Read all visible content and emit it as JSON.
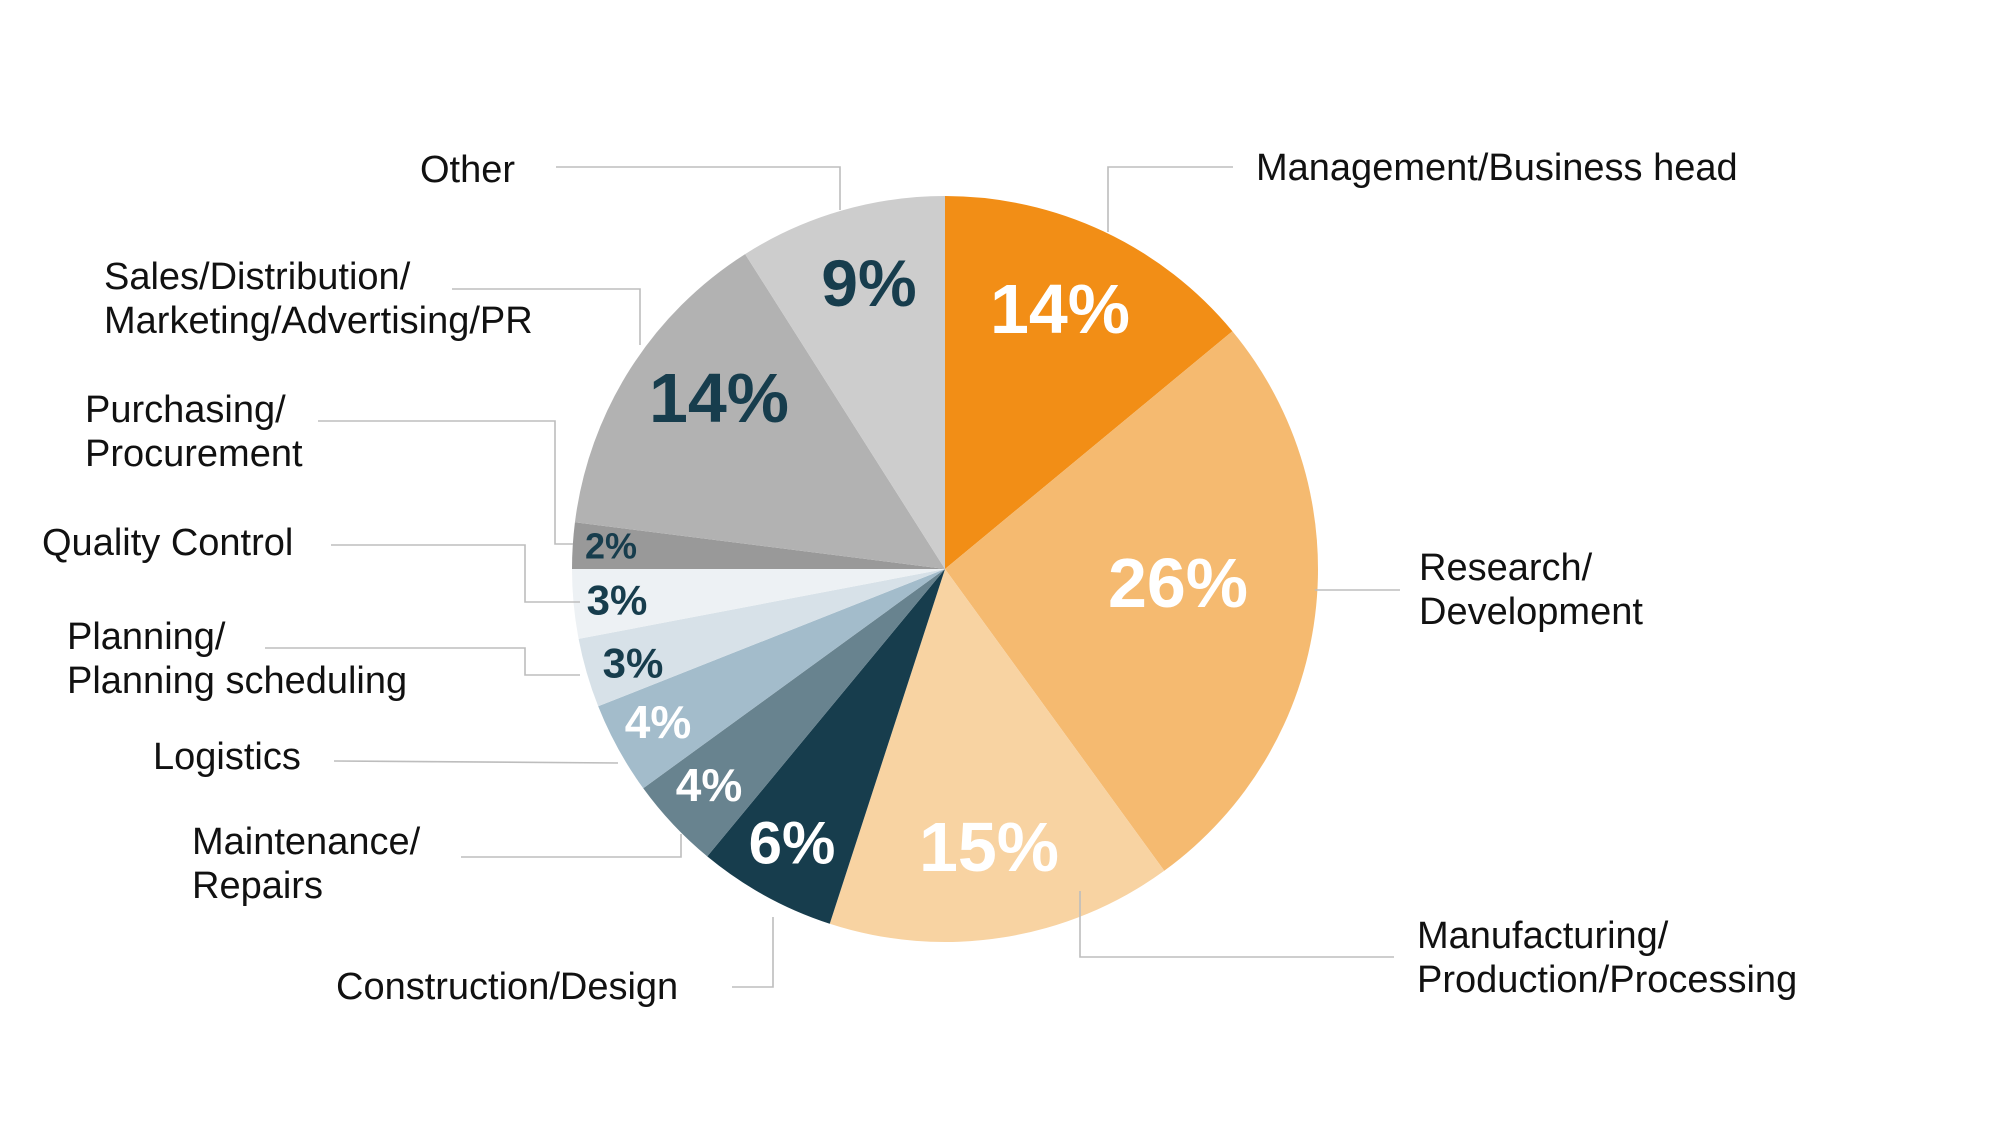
{
  "chart_data": {
    "type": "pie",
    "title": "",
    "start_angle_deg": 0,
    "direction": "clockwise",
    "slices": [
      {
        "label": "Management/Business head",
        "label_lines": [
          "Management/Business head"
        ],
        "value": 14,
        "value_label": "14%",
        "color": "#F28E16",
        "text_color": "#FFFFFF"
      },
      {
        "label": "Research/Development",
        "label_lines": [
          "Research/",
          "Development"
        ],
        "value": 26,
        "value_label": "26%",
        "color": "#F5BA70",
        "text_color": "#FFFFFF"
      },
      {
        "label": "Manufacturing/Production/Processing",
        "label_lines": [
          "Manufacturing/",
          "Production/Processing"
        ],
        "value": 15,
        "value_label": "15%",
        "color": "#F8D3A2",
        "text_color": "#FFFFFF"
      },
      {
        "label": "Construction/Design",
        "label_lines": [
          "Construction/Design"
        ],
        "value": 6,
        "value_label": "6%",
        "color": "#173D4D",
        "text_color": "#FFFFFF"
      },
      {
        "label": "Maintenance/Repairs",
        "label_lines": [
          "Maintenance/",
          "Repairs"
        ],
        "value": 4,
        "value_label": "4%",
        "color": "#68838F",
        "text_color": "#FFFFFF"
      },
      {
        "label": "Logistics",
        "label_lines": [
          "Logistics"
        ],
        "value": 4,
        "value_label": "4%",
        "color": "#A3BCCB",
        "text_color": "#FFFFFF"
      },
      {
        "label": "Planning/Planning scheduling",
        "label_lines": [
          "Planning/",
          "Planning scheduling"
        ],
        "value": 3,
        "value_label": "3%",
        "color": "#D7E1E8",
        "text_color": "#173D4D"
      },
      {
        "label": "Quality Control",
        "label_lines": [
          "Quality Control"
        ],
        "value": 3,
        "value_label": "3%",
        "color": "#EDF1F4",
        "text_color": "#173D4D"
      },
      {
        "label": "Purchasing/Procurement",
        "label_lines": [
          "Purchasing/",
          "Procurement"
        ],
        "value": 2,
        "value_label": "2%",
        "color": "#999999",
        "text_color": "#173D4D"
      },
      {
        "label": "Sales/Distribution/Marketing/Advertising/PR",
        "label_lines": [
          "Sales/Distribution/",
          "Marketing/Advertising/PR"
        ],
        "value": 14,
        "value_label": "14%",
        "color": "#B2B2B2",
        "text_color": "#173D4D"
      },
      {
        "label": "Other",
        "label_lines": [
          "Other"
        ],
        "value": 9,
        "value_label": "9%",
        "color": "#CDCDCD",
        "text_color": "#173D4D"
      }
    ]
  }
}
